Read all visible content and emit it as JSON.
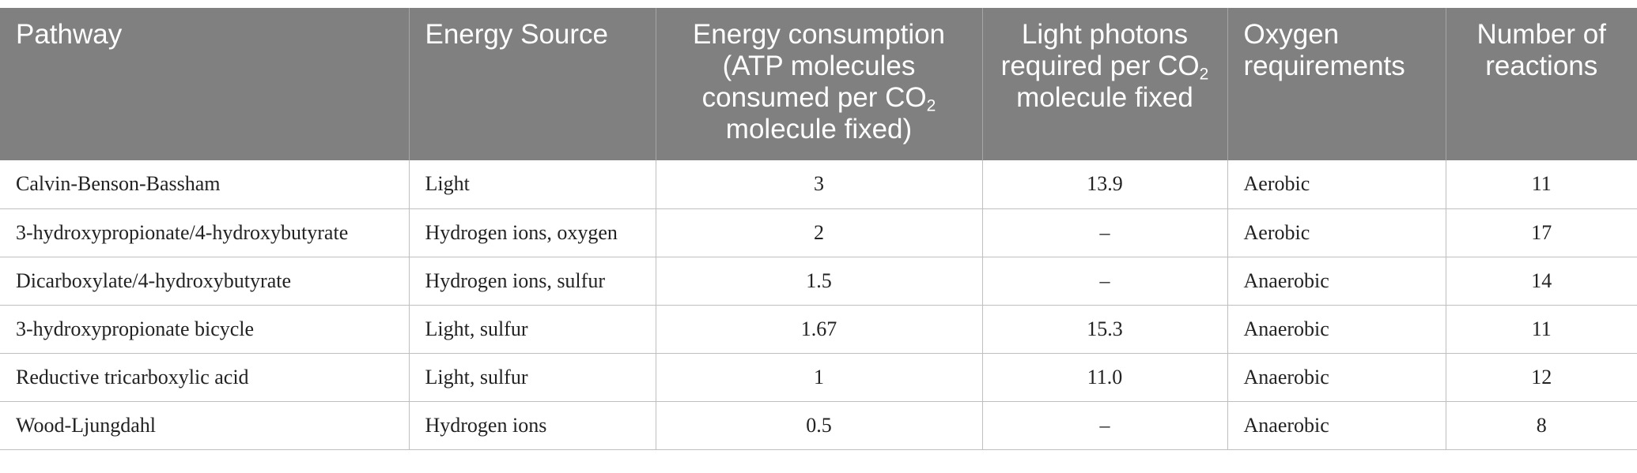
{
  "table": {
    "headers": {
      "pathway": "Pathway",
      "energy_source": "Energy Source",
      "energy_consumption_pre": "Energy consumption (ATP molecules consumed per CO",
      "energy_consumption_sub": "2",
      "energy_consumption_post": " molecule fixed)",
      "light_photons_pre": "Light photons required per CO",
      "light_photons_sub": "2",
      "light_photons_post": " molecule fixed",
      "oxygen": "Oxygen requirements",
      "reactions": "Number of reactions"
    },
    "rows": [
      {
        "pathway": "Calvin-Benson-Bassham",
        "energy_source": "Light",
        "atp": "3",
        "photons": "13.9",
        "oxygen": "Aerobic",
        "reactions": "11"
      },
      {
        "pathway": "3-hydroxypropionate/4-hydroxybutyrate",
        "energy_source": "Hydrogen ions, oxygen",
        "atp": "2",
        "photons": "–",
        "oxygen": "Aerobic",
        "reactions": "17"
      },
      {
        "pathway": "Dicarboxylate/4-hydroxybutyrate",
        "energy_source": "Hydrogen ions, sulfur",
        "atp": "1.5",
        "photons": "–",
        "oxygen": "Anaerobic",
        "reactions": "14"
      },
      {
        "pathway": "3-hydroxypropionate bicycle",
        "energy_source": "Light, sulfur",
        "atp": "1.67",
        "photons": "15.3",
        "oxygen": "Anaerobic",
        "reactions": "11"
      },
      {
        "pathway": "Reductive tricarboxylic acid",
        "energy_source": "Light, sulfur",
        "atp": "1",
        "photons": "11.0",
        "oxygen": "Anaerobic",
        "reactions": "12"
      },
      {
        "pathway": "Wood-Ljungdahl",
        "energy_source": "Hydrogen ions",
        "atp": "0.5",
        "photons": "–",
        "oxygen": "Anaerobic",
        "reactions": "8"
      }
    ]
  }
}
